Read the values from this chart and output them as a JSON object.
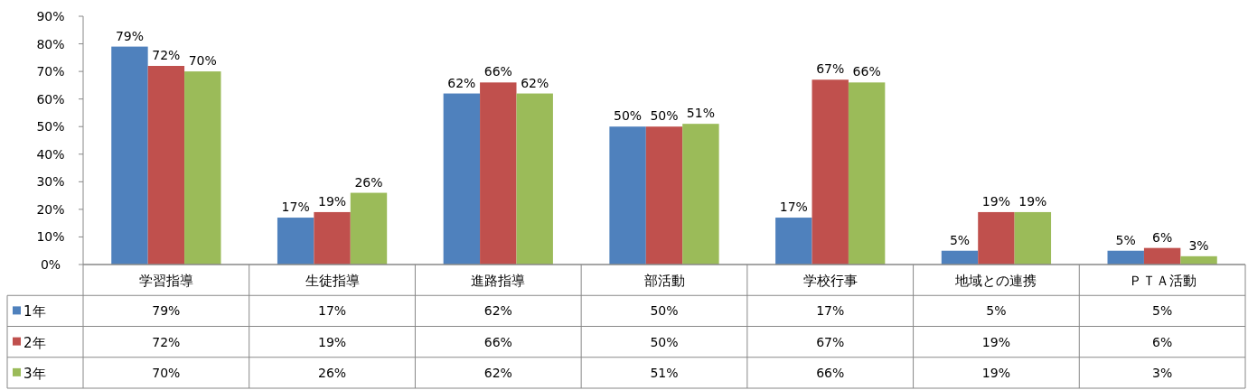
{
  "chart_data": {
    "type": "bar",
    "categories": [
      "学習指導",
      "生徒指導",
      "進路指導",
      "部活動",
      "学校行事",
      "地域との連携",
      "ＰＴＡ活動"
    ],
    "series": [
      {
        "name": "1年",
        "color": "#4f81bd",
        "values": [
          79,
          17,
          62,
          50,
          17,
          5,
          5
        ],
        "value_labels": [
          "79%",
          "17%",
          "62%",
          "50%",
          "17%",
          "5%",
          "5%"
        ]
      },
      {
        "name": "2年",
        "color": "#c0504d",
        "values": [
          72,
          19,
          66,
          50,
          67,
          19,
          6
        ],
        "value_labels": [
          "72%",
          "19%",
          "66%",
          "50%",
          "67%",
          "19%",
          "6%"
        ]
      },
      {
        "name": "3年",
        "color": "#9bbb59",
        "values": [
          70,
          26,
          62,
          51,
          66,
          19,
          3
        ],
        "value_labels": [
          "70%",
          "26%",
          "62%",
          "51%",
          "66%",
          "19%",
          "3%"
        ]
      }
    ],
    "ylim": [
      0,
      90
    ],
    "yticks": [
      {
        "value": 0,
        "label": "0%"
      },
      {
        "value": 10,
        "label": "10%"
      },
      {
        "value": 20,
        "label": "20%"
      },
      {
        "value": 30,
        "label": "30%"
      },
      {
        "value": 40,
        "label": "40%"
      },
      {
        "value": 50,
        "label": "50%"
      },
      {
        "value": 60,
        "label": "60%"
      },
      {
        "value": 70,
        "label": "70%"
      },
      {
        "value": 80,
        "label": "80%"
      },
      {
        "value": 90,
        "label": "90%"
      }
    ],
    "legend": "bottom left"
  }
}
